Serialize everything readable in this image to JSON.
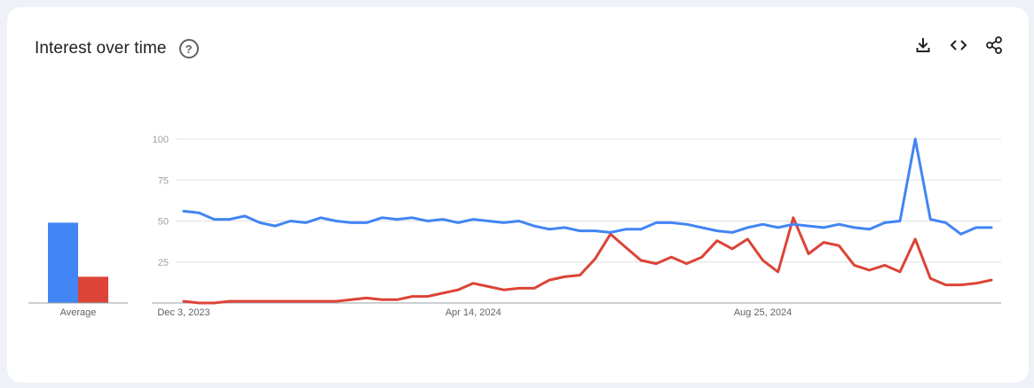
{
  "header": {
    "title": "Interest over time",
    "help_icon": "?",
    "icons": [
      "download-icon",
      "embed-code-icon",
      "share-icon"
    ]
  },
  "colors": {
    "series1": "#4285f4",
    "series2": "#db4437"
  },
  "chart_data": {
    "type": "line",
    "ylim": [
      0,
      100
    ],
    "yticks": [
      "25",
      "50",
      "75",
      "100"
    ],
    "ytick_values": [
      25,
      50,
      75,
      100
    ],
    "xticks": [
      {
        "label": "Dec 3, 2023",
        "index": 0
      },
      {
        "label": "Apr 14, 2024",
        "index": 19
      },
      {
        "label": "Aug 25, 2024",
        "index": 38
      }
    ],
    "series": [
      {
        "values": [
          56,
          55,
          51,
          51,
          53,
          49,
          47,
          50,
          49,
          52,
          50,
          49,
          49,
          52,
          51,
          52,
          50,
          51,
          49,
          51,
          50,
          49,
          50,
          47,
          45,
          46,
          44,
          44,
          43,
          45,
          45,
          49,
          49,
          48,
          46,
          44,
          43,
          46,
          48,
          46,
          48,
          47,
          46,
          48,
          46,
          45,
          49,
          50,
          100,
          51,
          49,
          42,
          46,
          46
        ]
      },
      {
        "values": [
          1,
          0,
          0,
          1,
          1,
          1,
          1,
          1,
          1,
          1,
          1,
          2,
          3,
          2,
          2,
          4,
          4,
          6,
          8,
          12,
          10,
          8,
          9,
          9,
          14,
          16,
          17,
          27,
          42,
          34,
          26,
          24,
          28,
          24,
          28,
          38,
          33,
          39,
          26,
          19,
          52,
          30,
          37,
          35,
          23,
          20,
          23,
          19,
          39,
          15,
          11,
          11,
          12,
          14
        ]
      }
    ],
    "average": {
      "label": "Average",
      "values": [
        49,
        16
      ]
    }
  }
}
